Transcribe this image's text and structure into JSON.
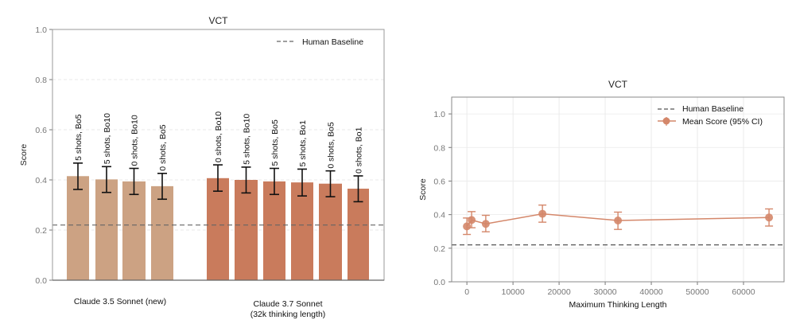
{
  "chart_data": [
    {
      "type": "bar",
      "title": "VCT",
      "ylabel": "Score",
      "xlabel": "",
      "ylim": [
        0,
        1.0
      ],
      "yticks": [
        "0.0",
        "0.2",
        "0.4",
        "0.6",
        "0.8",
        "1.0"
      ],
      "grid": true,
      "legend": {
        "position": "top-right",
        "entries": [
          "Human Baseline"
        ]
      },
      "baseline": 0.22,
      "groups": [
        {
          "name": "Claude 3.5 Sonnet (new)",
          "name_lines": [
            "Claude 3.5 Sonnet (new)"
          ],
          "color": "#cca283",
          "bars": [
            {
              "label": "5 shots, Bo5",
              "value": 0.415,
              "ci_low": 0.362,
              "ci_high": 0.467
            },
            {
              "label": "5 shots, Bo10",
              "value": 0.402,
              "ci_low": 0.35,
              "ci_high": 0.453
            },
            {
              "label": "0 shots, Bo10",
              "value": 0.394,
              "ci_low": 0.342,
              "ci_high": 0.446
            },
            {
              "label": "0 shots, Bo5",
              "value": 0.375,
              "ci_low": 0.323,
              "ci_high": 0.426
            }
          ]
        },
        {
          "name": "Claude 3.7 Sonnet (32k thinking length)",
          "name_lines": [
            "Claude 3.7 Sonnet",
            "(32k thinking length)"
          ],
          "color": "#c97b5c",
          "bars": [
            {
              "label": "0 shots, Bo10",
              "value": 0.407,
              "ci_low": 0.355,
              "ci_high": 0.46
            },
            {
              "label": "5 shots, Bo10",
              "value": 0.4,
              "ci_low": 0.348,
              "ci_high": 0.451
            },
            {
              "label": "5 shots, Bo5",
              "value": 0.394,
              "ci_low": 0.342,
              "ci_high": 0.446
            },
            {
              "label": "5 shots, Bo1",
              "value": 0.39,
              "ci_low": 0.336,
              "ci_high": 0.443
            },
            {
              "label": "0 shots, Bo5",
              "value": 0.385,
              "ci_low": 0.333,
              "ci_high": 0.436
            },
            {
              "label": "0 shots, Bo1",
              "value": 0.365,
              "ci_low": 0.313,
              "ci_high": 0.416
            }
          ]
        }
      ]
    },
    {
      "type": "line",
      "title": "VCT",
      "xlabel": "Maximum Thinking Length",
      "ylabel": "Score",
      "xlim": [
        -3300,
        68800
      ],
      "ylim": [
        0,
        1.1
      ],
      "xticks": [
        0,
        10000,
        20000,
        30000,
        40000,
        50000,
        60000
      ],
      "yticks": [
        "0.0",
        "0.2",
        "0.4",
        "0.6",
        "0.8",
        "1.0"
      ],
      "grid": true,
      "legend": {
        "position": "top-right",
        "entries": [
          "Human Baseline",
          "Mean Score (95% CI)"
        ]
      },
      "baseline": 0.22,
      "color": "#d4876a",
      "series": [
        {
          "name": "Mean Score (95% CI)",
          "x": [
            0,
            1024,
            4096,
            16384,
            32768,
            65536
          ],
          "y": [
            0.33,
            0.368,
            0.345,
            0.405,
            0.365,
            0.383
          ],
          "ci_low": [
            0.282,
            0.322,
            0.298,
            0.355,
            0.312,
            0.332
          ],
          "ci_high": [
            0.38,
            0.418,
            0.396,
            0.457,
            0.415,
            0.434
          ]
        }
      ]
    }
  ]
}
